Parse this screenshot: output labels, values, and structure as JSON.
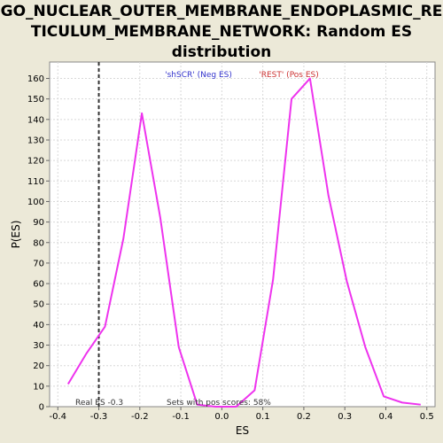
{
  "title_lines": [
    "GO_NUCLEAR_OUTER_MEMBRANE_ENDOPLASMIC_RE",
    "TICULUM_MEMBRANE_NETWORK: Random ES",
    "distribution"
  ],
  "chart_data": {
    "type": "line",
    "title": "GO_NUCLEAR_OUTER_MEMBRANE_ENDOPLASMIC_RETICULUM_MEMBRANE_NETWORK: Random ES distribution",
    "xlabel": "ES",
    "ylabel": "P(ES)",
    "xlim": [
      -0.42,
      0.52
    ],
    "ylim": [
      0,
      168
    ],
    "xticks": [
      -0.4,
      -0.3,
      -0.2,
      -0.1,
      0.0,
      0.1,
      0.2,
      0.3,
      0.4,
      0.5
    ],
    "xtick_labels": [
      "-0.4",
      "-0.3",
      "-0.2",
      "-0.1",
      "0.0",
      "0.1",
      "0.2",
      "0.3",
      "0.4",
      "0.5"
    ],
    "yticks": [
      0,
      10,
      20,
      30,
      40,
      50,
      60,
      70,
      80,
      90,
      100,
      110,
      120,
      130,
      140,
      150,
      160
    ],
    "grid": true,
    "series": [
      {
        "color": "#EE33EE",
        "x": [
          -0.375,
          -0.33,
          -0.285,
          -0.24,
          -0.195,
          -0.15,
          -0.105,
          -0.06,
          -0.015,
          0.035,
          0.08,
          0.125,
          0.17,
          0.215,
          0.26,
          0.305,
          0.35,
          0.395,
          0.44,
          0.485
        ],
        "y": [
          11,
          26,
          39,
          82,
          143,
          92,
          29,
          1,
          0,
          0,
          8,
          62,
          150,
          160,
          103,
          61,
          29,
          5,
          2,
          1
        ]
      }
    ],
    "real_es": -0.3,
    "annotations": {
      "neg_label": "'shSCR' (Neg ES)",
      "pos_label": "'REST' (Pos ES)",
      "real_es_label": "Real ES -0.3",
      "pos_scores_label": "Sets with pos scores: 58%"
    },
    "colors": {
      "line": "#EE33EE",
      "neg_label": "#3333CC",
      "pos_label": "#CC3333",
      "plot_bg": "#FFFFFF",
      "frame_bg": "#ECE9D8"
    }
  }
}
